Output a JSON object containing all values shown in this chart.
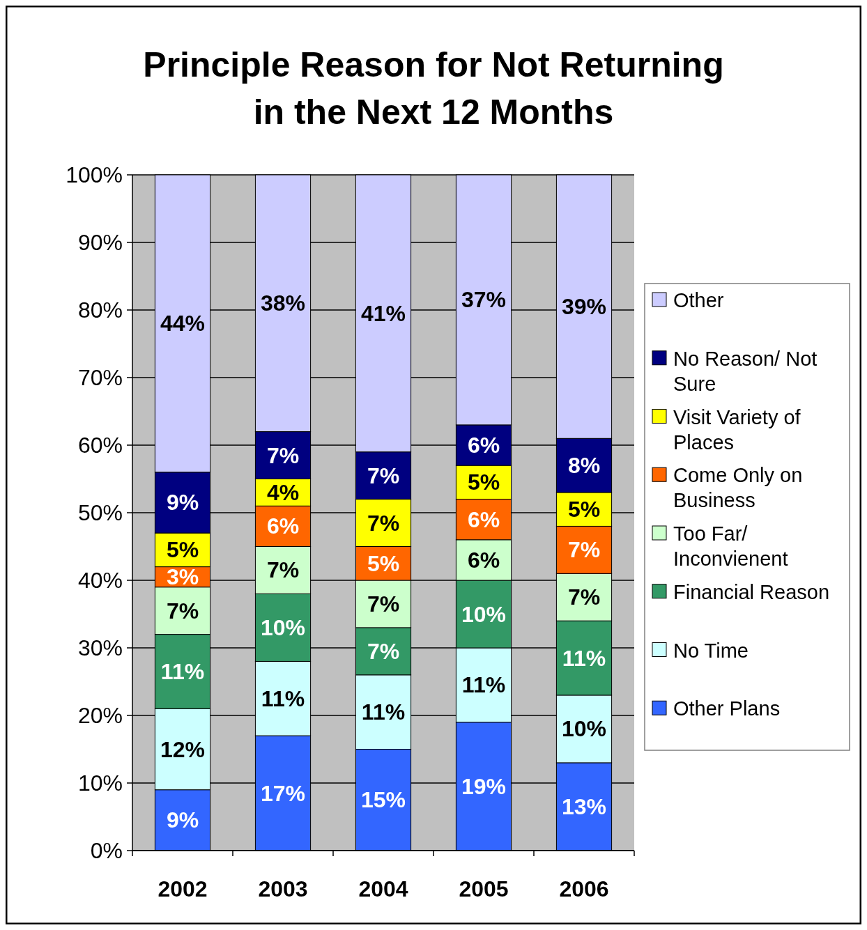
{
  "chart_data": {
    "type": "bar",
    "stacked": true,
    "title": "Principle Reason for Not Returning\nin the Next 12 Months",
    "categories": [
      "2002",
      "2003",
      "2004",
      "2005",
      "2006"
    ],
    "ylim": [
      0,
      100
    ],
    "yticks": [
      {
        "value": 0,
        "label": "0%"
      },
      {
        "value": 10,
        "label": "10%"
      },
      {
        "value": 20,
        "label": "20%"
      },
      {
        "value": 30,
        "label": "30%"
      },
      {
        "value": 40,
        "label": "40%"
      },
      {
        "value": 50,
        "label": "50%"
      },
      {
        "value": 60,
        "label": "60%"
      },
      {
        "value": 70,
        "label": "70%"
      },
      {
        "value": 80,
        "label": "80%"
      },
      {
        "value": 90,
        "label": "90%"
      },
      {
        "value": 100,
        "label": "100%"
      }
    ],
    "grid": "y",
    "legend": "right",
    "series": [
      {
        "name": "Other Plans",
        "color": "#3366ff",
        "values": [
          9,
          17,
          15,
          19,
          13
        ],
        "value_labels": [
          "9%",
          "17%",
          "15%",
          "19%",
          "13%"
        ]
      },
      {
        "name": "No Time",
        "color": "#ccffff",
        "values": [
          12,
          11,
          11,
          11,
          10
        ],
        "value_labels": [
          "12%",
          "11%",
          "11%",
          "11%",
          "10%"
        ]
      },
      {
        "name": "Financial Reason",
        "color": "#339966",
        "values": [
          11,
          10,
          7,
          10,
          11
        ],
        "value_labels": [
          "11%",
          "10%",
          "7%",
          "10%",
          "11%"
        ]
      },
      {
        "name": "Too Far/ Inconvienent",
        "color": "#ccffcc",
        "values": [
          7,
          7,
          7,
          6,
          7
        ],
        "value_labels": [
          "7%",
          "7%",
          "7%",
          "6%",
          "7%"
        ]
      },
      {
        "name": "Come Only on Business",
        "color": "#ff6600",
        "values": [
          3,
          6,
          5,
          6,
          7
        ],
        "value_labels": [
          "3%",
          "6%",
          "5%",
          "6%",
          "7%"
        ]
      },
      {
        "name": "Visit Variety of Places",
        "color": "#ffff00",
        "values": [
          5,
          4,
          7,
          5,
          5
        ],
        "value_labels": [
          "5%",
          "4%",
          "7%",
          "5%",
          "5%"
        ]
      },
      {
        "name": "No Reason/ Not Sure",
        "color": "#000080",
        "values": [
          9,
          7,
          7,
          6,
          8
        ],
        "value_labels": [
          "9%",
          "7%",
          "7%",
          "6%",
          "8%"
        ]
      },
      {
        "name": "Other",
        "color": "#ccccff",
        "values": [
          44,
          38,
          41,
          37,
          39
        ],
        "value_labels": [
          "44%",
          "38%",
          "41%",
          "37%",
          "39%"
        ]
      }
    ]
  }
}
